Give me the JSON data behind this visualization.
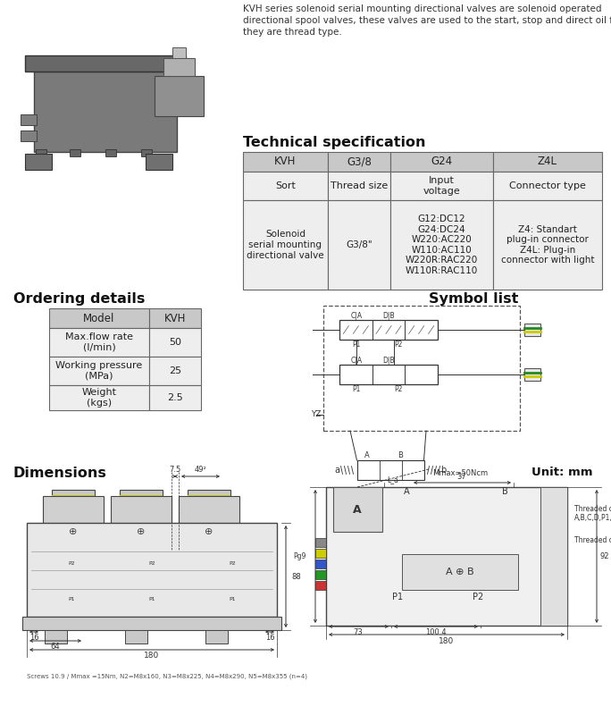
{
  "title_text_lines": [
    "KVH series solenoid serial mounting directional valves are solenoid operated",
    "directional spool valves, these valves are used to the start, stop and direct oil flow,",
    "they are thread type."
  ],
  "tech_spec_title": "Technical specification",
  "tech_spec_headers": [
    "KVH",
    "G3/8",
    "G24",
    "Z4L"
  ],
  "tech_spec_row1": [
    "Sort",
    "Thread size",
    "Input\nvoltage",
    "Connector type"
  ],
  "tech_spec_row2": [
    "Solenoid\nserial mounting\ndirectional valve",
    "G3/8\"",
    "G12:DC12\nG24:DC24\nW220:AC220\nW110:AC110\nW220R:RAC220\nW110R:RAC110",
    "Z4: Standart\nplug-in connector\nZ4L: Plug-in\nconnector with light"
  ],
  "ordering_title": "Ordering details",
  "ordering_headers": [
    "Model",
    "KVH"
  ],
  "ordering_rows": [
    [
      "Max.flow rate\n(l/min)",
      "50"
    ],
    [
      "Working pressure\n(MPa)",
      "25"
    ],
    [
      "Weight\n(kgs)",
      "2.5"
    ]
  ],
  "symbol_title": "Symbol list",
  "dimensions_title": "Dimensions",
  "unit_title": "Unit: mm",
  "bg_color": "#ffffff",
  "dim_notes": "Screws 10.9 / Mmax =15Nm, N2=M8x160, N3=M8x225, N4=M8x290, N5=M8x355 (n=4)"
}
